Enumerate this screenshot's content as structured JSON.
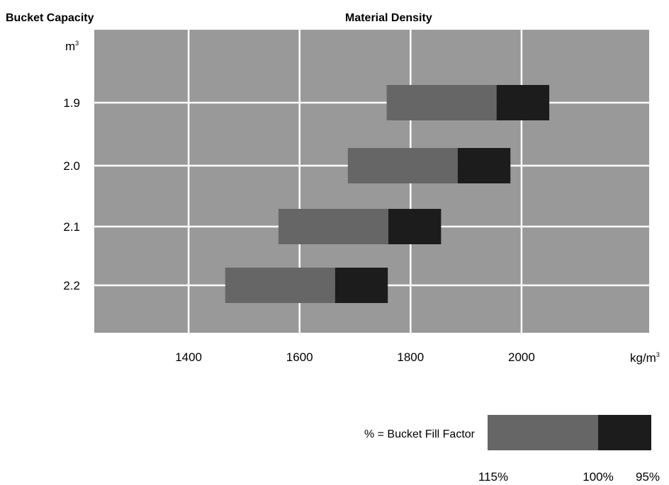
{
  "chart_data": {
    "type": "bar",
    "orientation": "horizontal-range",
    "title": "Material Density",
    "ylabel": "Bucket Capacity",
    "ylabel_unit": "m",
    "ylabel_unit_sup": "3",
    "xlabel_unit": "kg/m",
    "xlabel_unit_sup": "3",
    "xlim": [
      1230,
      2230
    ],
    "x_ticks": [
      1400,
      1600,
      1800,
      2000
    ],
    "categories": [
      "1.9",
      "2.0",
      "2.1",
      "2.2"
    ],
    "series": [
      {
        "name": "115%",
        "starts": [
          1757,
          1687,
          1562,
          1466
        ],
        "ends": [
          1955,
          1885,
          1760,
          1664
        ]
      },
      {
        "name": "100%",
        "starts": [
          1955,
          1885,
          1760,
          1664
        ],
        "ends": [
          2050,
          1980,
          1855,
          1759
        ]
      }
    ],
    "grid": true,
    "colors": {
      "plot_bg": "#999999",
      "grid": "#ffffff",
      "fill_115": "#666666",
      "fill_100": "#1c1c1c"
    },
    "legend": {
      "label": "% = Bucket Fill Factor",
      "ticks": [
        "115%",
        "100%",
        "95%"
      ],
      "placement": "bottom-right"
    }
  }
}
